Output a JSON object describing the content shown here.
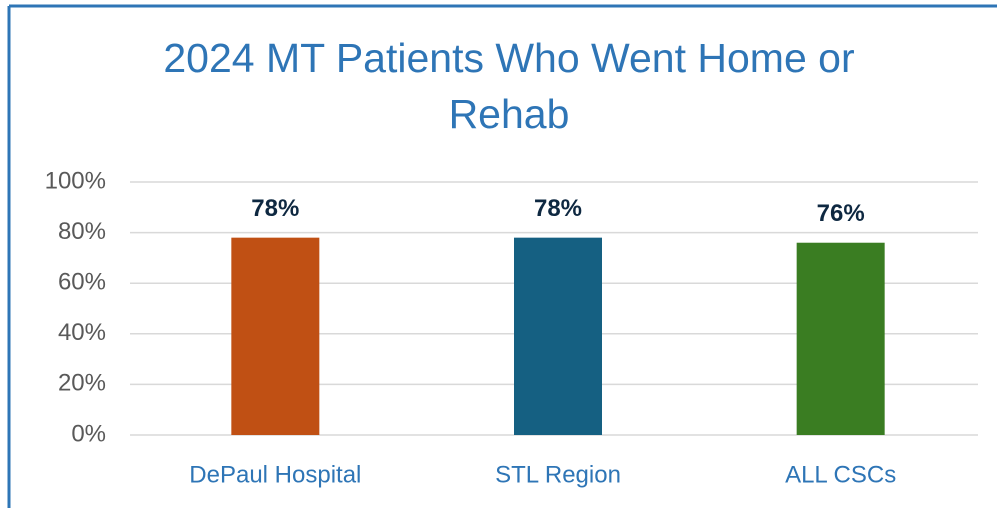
{
  "chart_data": {
    "type": "bar",
    "title": "2024 MT Patients Who Went Home or Rehab",
    "categories": [
      "DePaul Hospital",
      "STL Region",
      "ALL CSCs"
    ],
    "values": [
      78,
      78,
      76
    ],
    "value_labels": [
      "78%",
      "78%",
      "76%"
    ],
    "colors": [
      "#c05014",
      "#156082",
      "#3a7d22"
    ],
    "ylim": [
      0,
      100
    ],
    "yticks": [
      {
        "value": 0,
        "label": "0%"
      },
      {
        "value": 20,
        "label": "20%"
      },
      {
        "value": 40,
        "label": "40%"
      },
      {
        "value": 60,
        "label": "60%"
      },
      {
        "value": 80,
        "label": "80%"
      },
      {
        "value": 100,
        "label": "100%"
      }
    ],
    "grid": true
  }
}
